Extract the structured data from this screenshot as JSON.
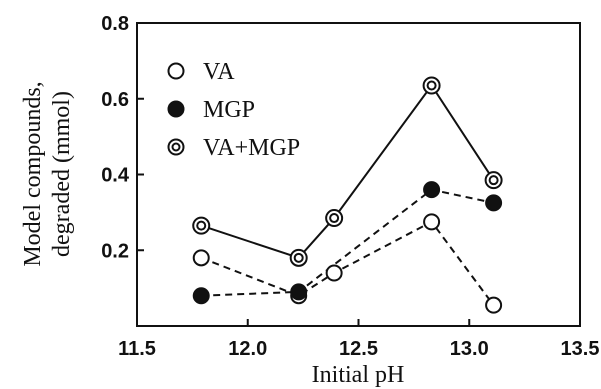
{
  "chart_data": {
    "type": "line",
    "xlabel": "Initial pH",
    "ylabel_lines": [
      "Model compounds,",
      "degraded (mmol)"
    ],
    "xlim": [
      11.5,
      13.5
    ],
    "ylim": [
      0.0,
      0.8
    ],
    "xticks": [
      "11.5",
      "12.0",
      "12.5",
      "13.0",
      "13.5"
    ],
    "yticks": [
      "0.2",
      "0.4",
      "0.6",
      "0.8"
    ],
    "grid": false,
    "legend_position": "top-left",
    "series": [
      {
        "name": "VA",
        "marker": "open-circle",
        "line_style": "dashed",
        "x": [
          11.79,
          12.23,
          12.39,
          12.83,
          13.11
        ],
        "y": [
          0.18,
          0.08,
          0.14,
          0.275,
          0.055
        ]
      },
      {
        "name": "MGP",
        "marker": "filled-circle",
        "line_style": "dashed",
        "x": [
          11.79,
          12.23,
          12.83,
          13.11
        ],
        "y": [
          0.08,
          0.09,
          0.36,
          0.325
        ]
      },
      {
        "name": "VA+MGP",
        "marker": "double-circle",
        "line_style": "solid",
        "x": [
          11.79,
          12.23,
          12.39,
          12.83,
          13.11
        ],
        "y": [
          0.265,
          0.18,
          0.285,
          0.635,
          0.385
        ]
      }
    ]
  }
}
